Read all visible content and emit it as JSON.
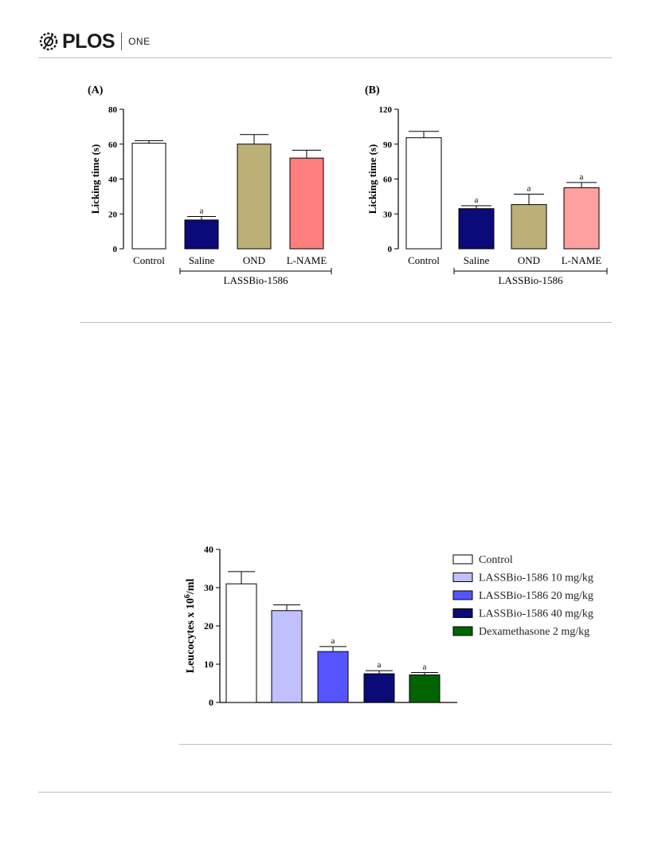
{
  "header": {
    "logo_text": "PLOS",
    "journal": "ONE"
  },
  "chart_data": [
    {
      "type": "bar",
      "panel_label": "(A)",
      "ylabel": "Licking time (s)",
      "ylim": [
        0,
        80
      ],
      "yticks": [
        0,
        20,
        40,
        60,
        80
      ],
      "categories": [
        "Control",
        "Saline",
        "OND",
        "L-NAME"
      ],
      "values": [
        60.5,
        16.5,
        60,
        52
      ],
      "errors": [
        1.5,
        2,
        5.5,
        4.5
      ],
      "annotations": [
        "",
        "a",
        "",
        ""
      ],
      "colors": [
        "#ffffff",
        "#0a0a78",
        "#bdb076",
        "#ff7f7f"
      ],
      "group_label": "LASSBio-1586",
      "group_span": [
        1,
        3
      ]
    },
    {
      "type": "bar",
      "panel_label": "(B)",
      "ylabel": "Licking time (s)",
      "ylim": [
        0,
        120
      ],
      "yticks": [
        0,
        30,
        60,
        90,
        120
      ],
      "categories": [
        "Control",
        "Saline",
        "OND",
        "L-NAME"
      ],
      "values": [
        95.5,
        34.5,
        38,
        52.5
      ],
      "errors": [
        5.5,
        2.5,
        9,
        4.5
      ],
      "annotations": [
        "",
        "a",
        "a",
        "a"
      ],
      "colors": [
        "#ffffff",
        "#0a0a78",
        "#bdb076",
        "#ffa0a0"
      ],
      "group_label": "LASSBio-1586",
      "group_span": [
        1,
        3
      ]
    },
    {
      "type": "bar",
      "ylabel_main": "Leucocytes x 10",
      "ylabel_sup": "6",
      "ylabel_tail": "/ml",
      "ylim": [
        0,
        40
      ],
      "yticks": [
        0,
        10,
        20,
        30,
        40
      ],
      "categories": [
        "Control",
        "LASSBio-1586 10 mg/kg",
        "LASSBio-1586 20 mg/kg",
        "LASSBio-1586 40 mg/kg",
        "Dexamethasone 2 mg/kg"
      ],
      "values": [
        31,
        24,
        13.3,
        7.5,
        7.2
      ],
      "errors": [
        3.2,
        1.5,
        1.3,
        0.8,
        0.6
      ],
      "annotations": [
        "",
        "",
        "a",
        "a",
        "a"
      ],
      "colors": [
        "#ffffff",
        "#c0c0ff",
        "#5555ff",
        "#0a0a78",
        "#006400"
      ],
      "legend": [
        "Control",
        "LASSBio-1586 10 mg/kg",
        "LASSBio-1586 20 mg/kg",
        "LASSBio-1586 40 mg/kg",
        "Dexamethasone 2 mg/kg"
      ],
      "legend_position": "right"
    }
  ]
}
